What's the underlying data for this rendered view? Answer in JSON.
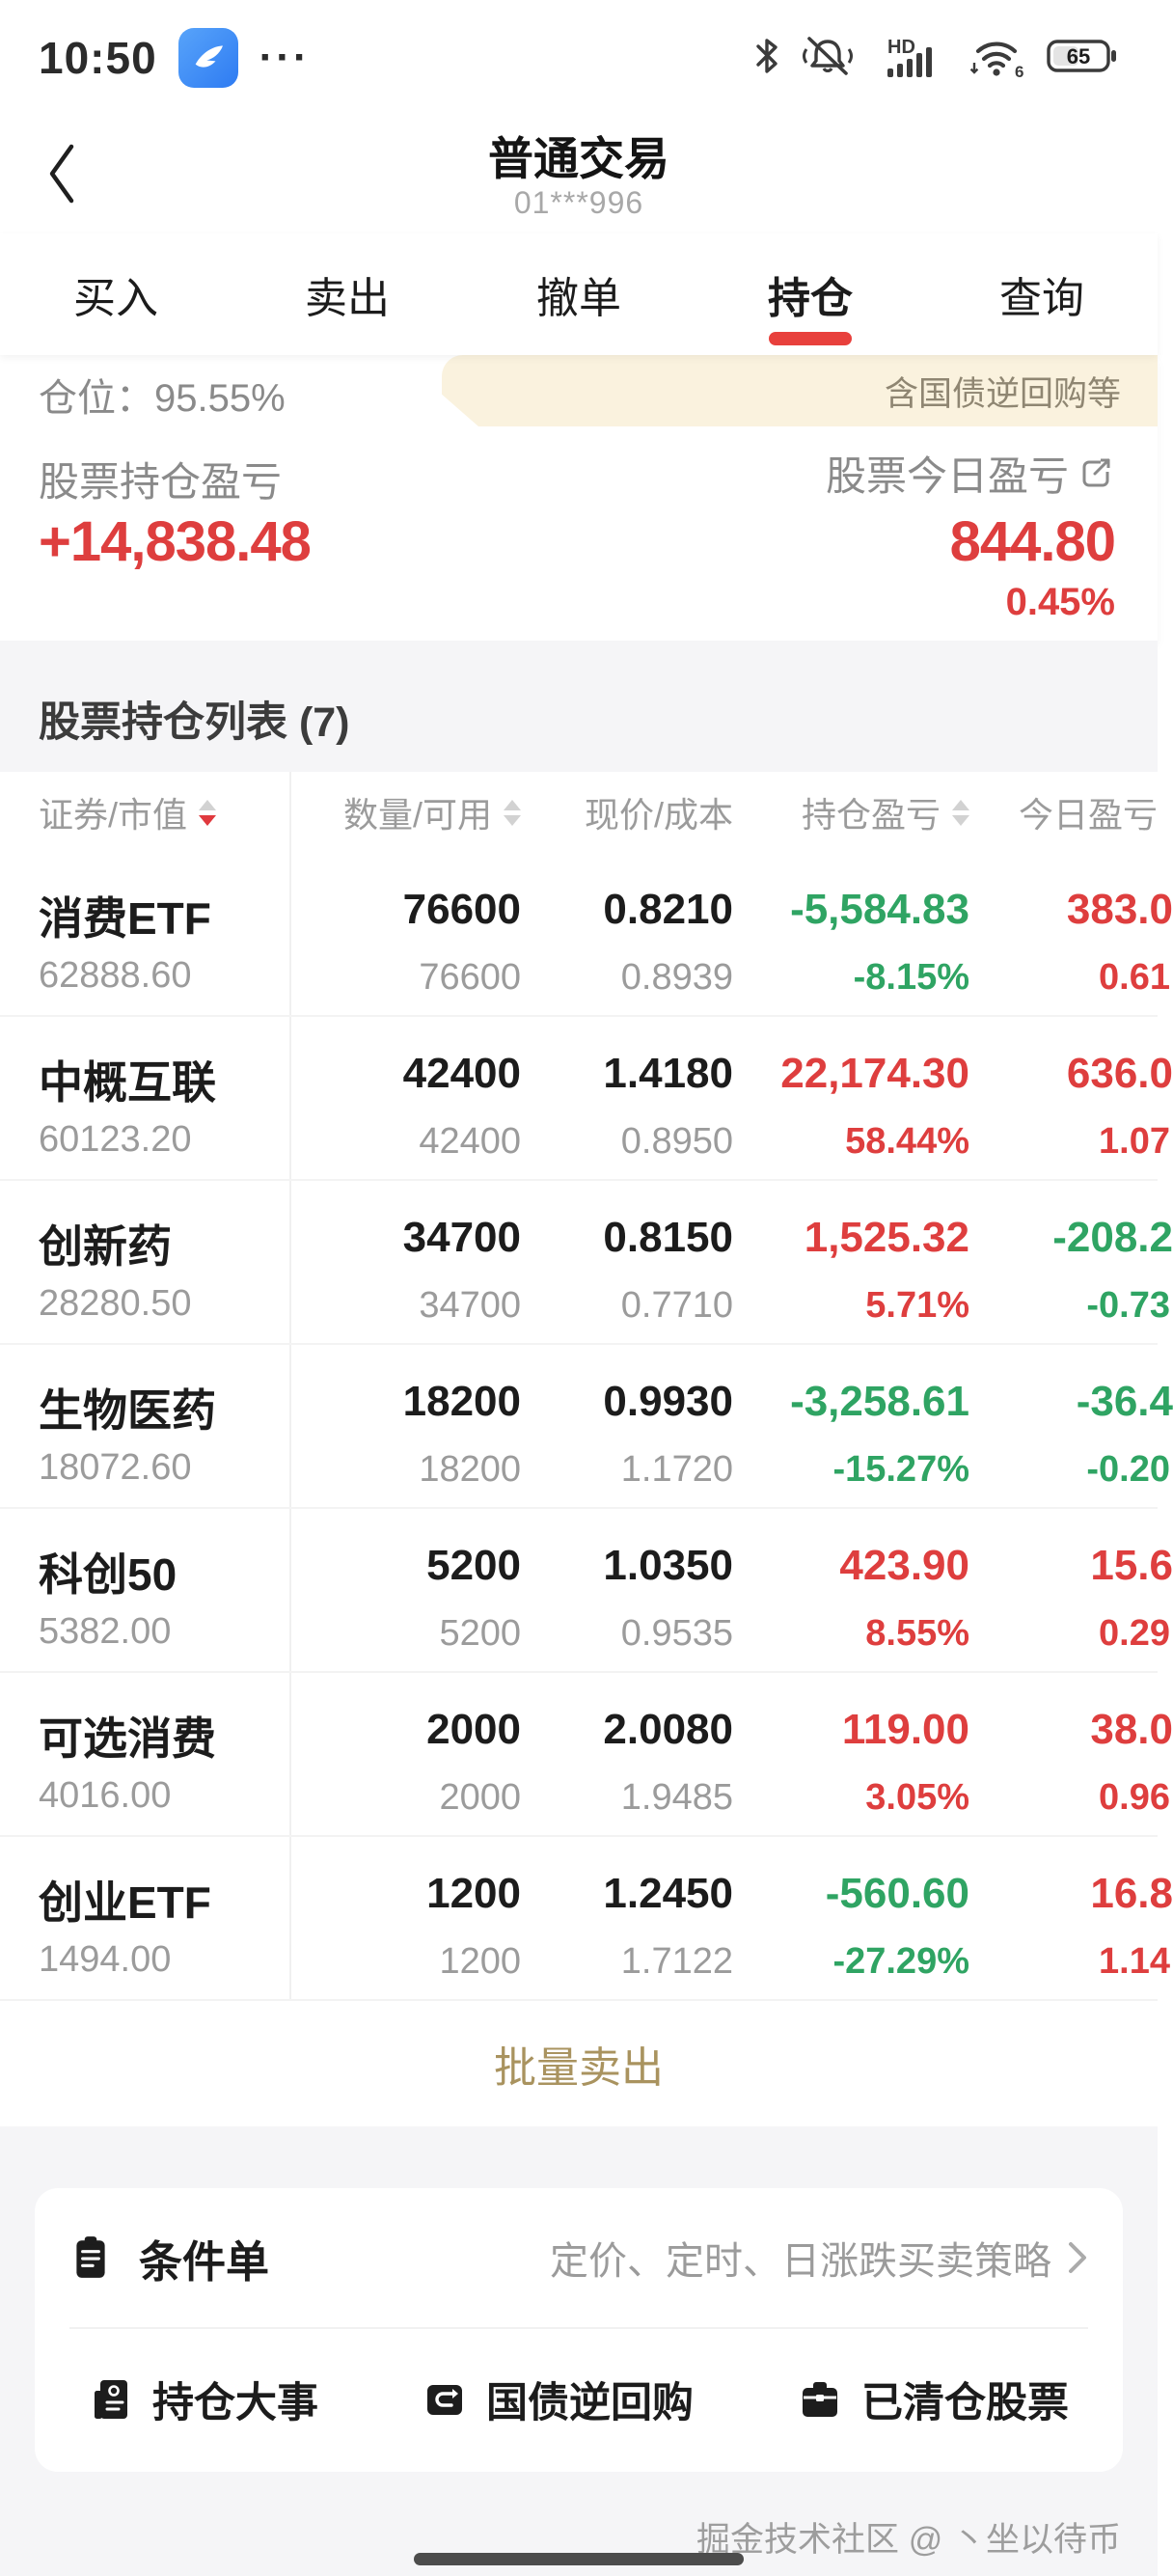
{
  "status_bar": {
    "time": "10:50",
    "more": "···",
    "battery": "65",
    "network": "HD",
    "wifi_gen": "6"
  },
  "header": {
    "title": "普通交易",
    "subtitle": "01***996"
  },
  "tabs": [
    {
      "key": "buy",
      "label": "买入",
      "active": false
    },
    {
      "key": "sell",
      "label": "卖出",
      "active": false
    },
    {
      "key": "cancel",
      "label": "撤单",
      "active": false
    },
    {
      "key": "positions",
      "label": "持仓",
      "active": true
    },
    {
      "key": "query",
      "label": "查询",
      "active": false
    }
  ],
  "position_bar": {
    "label": "仓位：95.55%",
    "tag": "含国债逆回购等"
  },
  "summary": {
    "left_label": "股票持仓盈亏",
    "left_value": "+14,838.48",
    "right_label": "股票今日盈亏",
    "right_value": "844.80",
    "right_pct": "0.45%"
  },
  "list": {
    "title": "股票持仓列表 (7)"
  },
  "table": {
    "headers": [
      "证券/市值",
      "数量/可用",
      "现价/成本",
      "持仓盈亏",
      "今日盈亏"
    ],
    "rows": [
      {
        "name": "消费ETF",
        "market_value": "62888.60",
        "qty": "76600",
        "avail": "76600",
        "price": "0.8210",
        "cost": "0.8939",
        "pl": "-5,584.83",
        "pl_pct": "-8.15%",
        "pl_trend": "green",
        "today": "383.0",
        "today_pct": "0.61",
        "today_trend": "red"
      },
      {
        "name": "中概互联",
        "market_value": "60123.20",
        "qty": "42400",
        "avail": "42400",
        "price": "1.4180",
        "cost": "0.8950",
        "pl": "22,174.30",
        "pl_pct": "58.44%",
        "pl_trend": "red",
        "today": "636.0",
        "today_pct": "1.07",
        "today_trend": "red"
      },
      {
        "name": "创新药",
        "market_value": "28280.50",
        "qty": "34700",
        "avail": "34700",
        "price": "0.8150",
        "cost": "0.7710",
        "pl": "1,525.32",
        "pl_pct": "5.71%",
        "pl_trend": "red",
        "today": "-208.2",
        "today_pct": "-0.73",
        "today_trend": "green"
      },
      {
        "name": "生物医药",
        "market_value": "18072.60",
        "qty": "18200",
        "avail": "18200",
        "price": "0.9930",
        "cost": "1.1720",
        "pl": "-3,258.61",
        "pl_pct": "-15.27%",
        "pl_trend": "green",
        "today": "-36.4",
        "today_pct": "-0.20",
        "today_trend": "green"
      },
      {
        "name": "科创50",
        "market_value": "5382.00",
        "qty": "5200",
        "avail": "5200",
        "price": "1.0350",
        "cost": "0.9535",
        "pl": "423.90",
        "pl_pct": "8.55%",
        "pl_trend": "red",
        "today": "15.6",
        "today_pct": "0.29",
        "today_trend": "red"
      },
      {
        "name": "可选消费",
        "market_value": "4016.00",
        "qty": "2000",
        "avail": "2000",
        "price": "2.0080",
        "cost": "1.9485",
        "pl": "119.00",
        "pl_pct": "3.05%",
        "pl_trend": "red",
        "today": "38.0",
        "today_pct": "0.96",
        "today_trend": "red"
      },
      {
        "name": "创业ETF",
        "market_value": "1494.00",
        "qty": "1200",
        "avail": "1200",
        "price": "1.2450",
        "cost": "1.7122",
        "pl": "-560.60",
        "pl_pct": "-27.29%",
        "pl_trend": "green",
        "today": "16.8",
        "today_pct": "1.14",
        "today_trend": "red"
      }
    ]
  },
  "actions": {
    "batch_sell": "批量卖出"
  },
  "bottom_card": {
    "row1": {
      "title": "条件单",
      "desc": "定价、定时、日涨跌买卖策略"
    },
    "shortcuts": [
      {
        "key": "position-events",
        "label": "持仓大事"
      },
      {
        "key": "bond-reverse-repo",
        "label": "国债逆回购"
      },
      {
        "key": "cleared-stocks",
        "label": "已清仓股票"
      }
    ]
  },
  "watermark": "掘金技术社区 @ 丶坐以待币",
  "colors": {
    "red": "#DE3E3E",
    "green": "#2FA463",
    "gold": "#A9935F",
    "tab_underline": "#E8403C"
  }
}
